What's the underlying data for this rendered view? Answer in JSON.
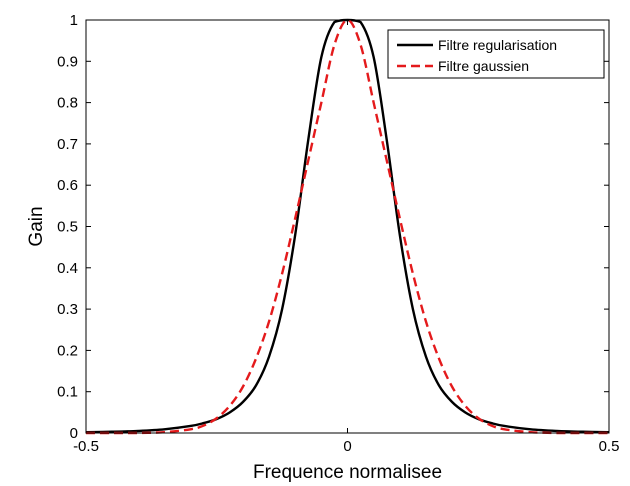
{
  "chart_data": {
    "type": "line",
    "xlabel": "Frequence normalisee",
    "ylabel": "Gain",
    "xlim": [
      -0.5,
      0.5
    ],
    "ylim": [
      0,
      1
    ],
    "xticks": [
      -0.5,
      0,
      0.5
    ],
    "xtick_labels": [
      "-0.5",
      "0",
      "0.5"
    ],
    "yticks": [
      0,
      0.1,
      0.2,
      0.3,
      0.4,
      0.5,
      0.6,
      0.7,
      0.8,
      0.9,
      1
    ],
    "ytick_labels": [
      "0",
      "0.1",
      "0.2",
      "0.3",
      "0.4",
      "0.5",
      "0.6",
      "0.7",
      "0.8",
      "0.9",
      "1"
    ],
    "grid": false,
    "legend_position": "top-right",
    "x": [
      -0.5,
      -0.45,
      -0.4,
      -0.35,
      -0.3,
      -0.275,
      -0.25,
      -0.225,
      -0.2,
      -0.175,
      -0.15,
      -0.125,
      -0.1,
      -0.075,
      -0.05,
      -0.025,
      0,
      0.025,
      0.05,
      0.075,
      0.1,
      0.125,
      0.15,
      0.175,
      0.2,
      0.225,
      0.25,
      0.275,
      0.3,
      0.35,
      0.4,
      0.45,
      0.5
    ],
    "series": [
      {
        "name": "Filtre regularisation",
        "color": "#000000",
        "style": "solid",
        "values": [
          0.002,
          0.003,
          0.005,
          0.009,
          0.017,
          0.024,
          0.034,
          0.05,
          0.075,
          0.115,
          0.185,
          0.3,
          0.48,
          0.71,
          0.91,
          0.995,
          1.0,
          0.995,
          0.91,
          0.71,
          0.48,
          0.3,
          0.185,
          0.115,
          0.075,
          0.05,
          0.034,
          0.024,
          0.017,
          0.009,
          0.005,
          0.003,
          0.002
        ]
      },
      {
        "name": "Filtre gaussien",
        "color": "#e41a1c",
        "style": "dashed",
        "values": [
          0.0,
          0.0,
          0.0,
          0.002,
          0.009,
          0.018,
          0.036,
          0.066,
          0.112,
          0.18,
          0.27,
          0.386,
          0.52,
          0.66,
          0.8,
          0.94,
          1.0,
          0.94,
          0.8,
          0.66,
          0.52,
          0.386,
          0.27,
          0.18,
          0.112,
          0.066,
          0.036,
          0.018,
          0.009,
          0.002,
          0.0,
          0.0,
          0.0
        ]
      }
    ]
  }
}
